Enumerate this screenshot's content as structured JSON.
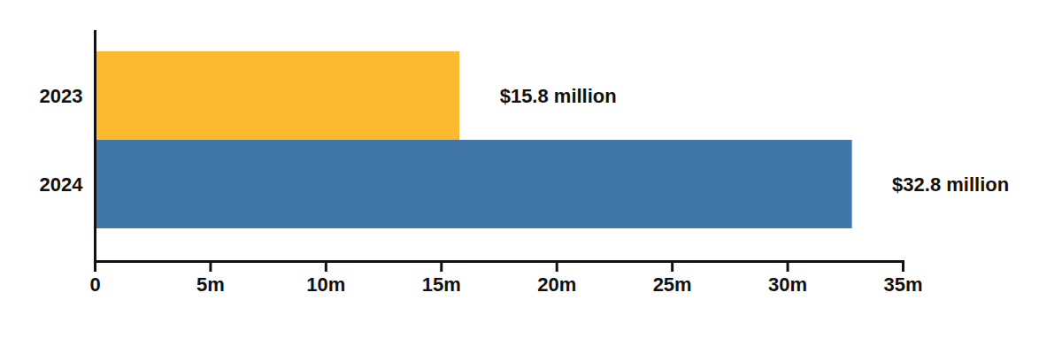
{
  "chart_data": {
    "type": "bar",
    "orientation": "horizontal",
    "categories": [
      "2023",
      "2024"
    ],
    "values": [
      15.8,
      32.8
    ],
    "value_labels": [
      "$15.8 million",
      "$32.8 million"
    ],
    "data_labels": true,
    "colors": [
      "#FBBA30",
      "#4176A8"
    ],
    "xlim": [
      0,
      35
    ],
    "xticks": [
      0,
      {
        "value": 5,
        "label": "5m"
      },
      {
        "value": 10,
        "label": "10m"
      },
      {
        "value": 15,
        "label": "15m"
      },
      {
        "value": 20,
        "label": "20m"
      },
      {
        "value": 25,
        "label": "25m"
      },
      {
        "value": 30,
        "label": "30m"
      },
      {
        "value": 35,
        "label": "35m"
      }
    ],
    "grid": false
  }
}
